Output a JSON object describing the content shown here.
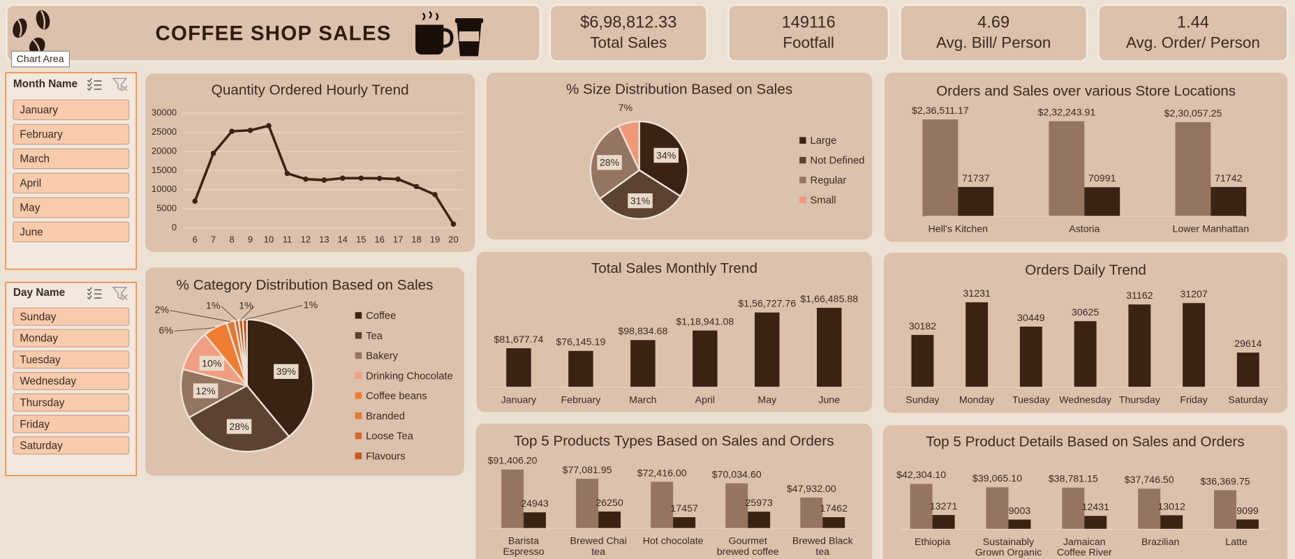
{
  "header": {
    "title": "COFFEE SHOP SALES",
    "tooltip": "Chart Area"
  },
  "kpis": [
    {
      "value": "$6,98,812.33",
      "label": "Total Sales"
    },
    {
      "value": "149116",
      "label": "Footfall"
    },
    {
      "value": "4.69",
      "label": "Avg. Bill/ Person"
    },
    {
      "value": "1.44",
      "label": "Avg. Order/ Person"
    }
  ],
  "slicers": [
    {
      "title": "Month Name",
      "items": [
        "January",
        "February",
        "March",
        "April",
        "May",
        "June"
      ]
    },
    {
      "title": "Day Name",
      "items": [
        "Sunday",
        "Monday",
        "Tuesday",
        "Wednesday",
        "Thursday",
        "Friday",
        "Saturday"
      ]
    }
  ],
  "chart_data": [
    {
      "type": "line",
      "title": "Quantity Ordered Hourly Trend",
      "categories": [
        "6",
        "7",
        "8",
        "9",
        "10",
        "11",
        "12",
        "13",
        "14",
        "15",
        "16",
        "17",
        "18",
        "19",
        "20"
      ],
      "values": [
        7000,
        19500,
        25250,
        25500,
        26700,
        14250,
        12750,
        12500,
        13000,
        13000,
        12950,
        12750,
        10800,
        8700,
        1000
      ],
      "color": "#3b2314",
      "ylim": [
        0,
        30000
      ],
      "yticks": [
        0,
        5000,
        10000,
        15000,
        20000,
        25000,
        30000
      ],
      "grid": true
    },
    {
      "type": "pie",
      "title": "% Size Distribution Based on Sales",
      "categories": [
        "Large",
        "Not Defined",
        "Regular",
        "Small"
      ],
      "values": [
        34,
        31,
        28,
        7
      ],
      "value_labels": [
        "34%",
        "31%",
        "28%",
        "7%"
      ],
      "colors": [
        "#3b2314",
        "#5c4230",
        "#957461",
        "#f0987a"
      ],
      "legend": "right"
    },
    {
      "type": "bar",
      "title": "Orders and Sales over various Store Locations",
      "categories": [
        "Hell's Kitchen",
        "Astoria",
        "Lower Manhattan"
      ],
      "series": [
        {
          "color": "#957461",
          "values": [
            236511.17,
            232243.91,
            230057.25
          ],
          "value_labels": [
            "$2,36,511.17",
            "$2,32,243.91",
            "$2,30,057.25"
          ]
        },
        {
          "color": "#3b2314",
          "values": [
            71737,
            70991,
            71742
          ]
        }
      ],
      "ylim": [
        0,
        250000
      ]
    },
    {
      "type": "pie",
      "title": "% Category Distribution Based on Sales",
      "categories": [
        "Coffee",
        "Tea",
        "Bakery",
        "Drinking Chocolate",
        "Coffee beans",
        "Branded",
        "Loose Tea",
        "Flavours",
        null
      ],
      "values": [
        39,
        28,
        12,
        10,
        6,
        2,
        1,
        1,
        1
      ],
      "value_labels": [
        "39%",
        "28%",
        "12%",
        "10%",
        "6%",
        "2%",
        "1%",
        "1%",
        "1%"
      ],
      "colors": [
        "#3b2314",
        "#5c4230",
        "#957461",
        "#f0a082",
        "#ee7d31",
        "#e07a38",
        "#d2692c",
        "#c55a20",
        "#b04e1c"
      ],
      "legend": "right"
    },
    {
      "type": "bar",
      "title": "Total Sales Monthly Trend",
      "categories": [
        "January",
        "February",
        "March",
        "April",
        "May",
        "June"
      ],
      "values": [
        81677.74,
        76145.19,
        98834.68,
        118941.08,
        156727.76,
        166485.88
      ],
      "value_labels": [
        "$81,677.74",
        "$76,145.19",
        "$98,834.68",
        "$1,18,941.08",
        "$1,56,727.76",
        "$1,66,485.88"
      ],
      "color": "#3b2314",
      "ylim": [
        0,
        180000
      ]
    },
    {
      "type": "bar",
      "title": "Orders Daily Trend",
      "categories": [
        "Sunday",
        "Monday",
        "Tuesday",
        "Wednesday",
        "Thursday",
        "Friday",
        "Saturday"
      ],
      "values": [
        30182,
        31231,
        30449,
        30625,
        31162,
        31207,
        29614
      ],
      "color": "#3b2314",
      "ylim": [
        28500,
        31500
      ]
    },
    {
      "type": "bar",
      "title": "Top 5 Products Types Based on Sales and Orders",
      "categories": [
        "Barista Espresso",
        "Brewed Chai tea",
        "Hot chocolate",
        "Gourmet brewed coffee",
        "Brewed Black tea"
      ],
      "series": [
        {
          "color": "#957461",
          "values": [
            91406.2,
            77081.95,
            72416.0,
            70034.6,
            47932.0
          ],
          "value_labels": [
            "$91,406.20",
            "$77,081.95",
            "$72,416.00",
            "$70,034.60",
            "$47,932.00"
          ]
        },
        {
          "color": "#3b2314",
          "values": [
            24943,
            26250,
            17457,
            25973,
            17462
          ]
        }
      ],
      "ylim": [
        0,
        100000
      ]
    },
    {
      "type": "bar",
      "title": "Top 5 Product Details Based on Sales and Orders",
      "categories": [
        "Ethiopia",
        "Sustainably Grown Organic",
        "Jamaican Coffee River",
        "Brazilian",
        "Latte"
      ],
      "series": [
        {
          "color": "#957461",
          "values": [
            42304.1,
            39065.1,
            38781.15,
            37746.5,
            36369.75
          ],
          "value_labels": [
            "$42,304.10",
            "$39,065.10",
            "$38,781.15",
            "$37,746.50",
            "$36,369.75"
          ]
        },
        {
          "color": "#3b2314",
          "values": [
            13271,
            9003,
            12431,
            13012,
            9099
          ]
        }
      ],
      "ylim": [
        0,
        50000
      ]
    }
  ]
}
